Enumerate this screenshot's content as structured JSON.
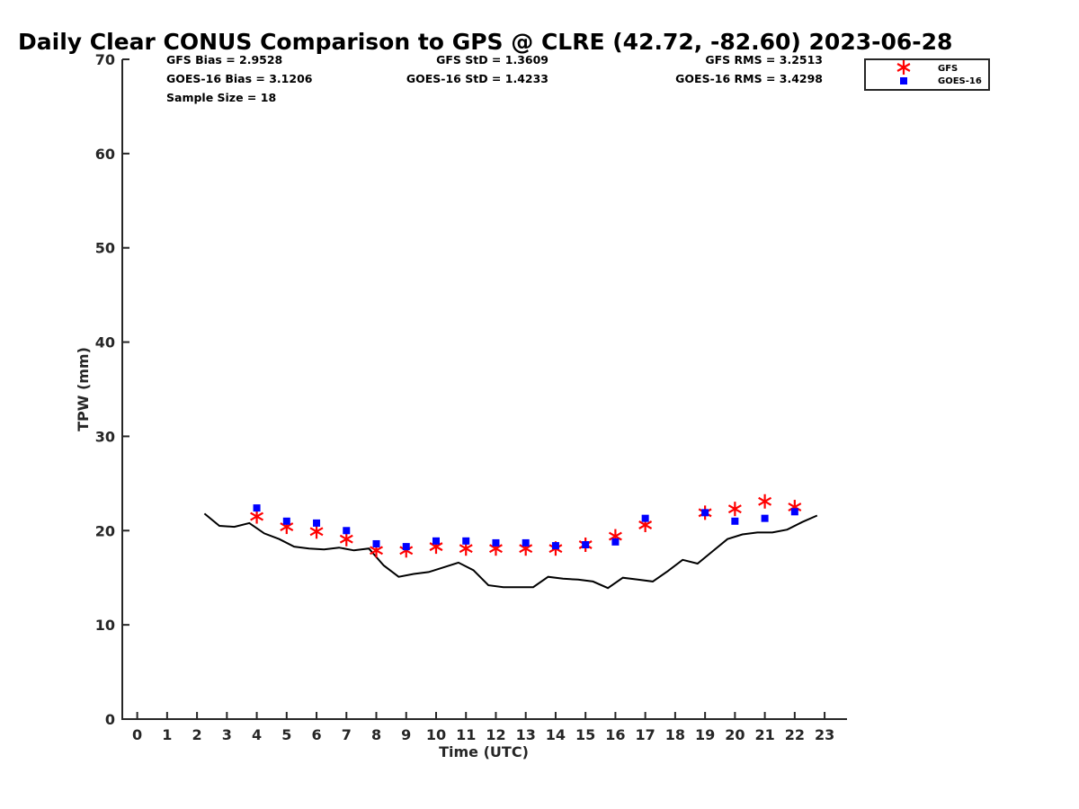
{
  "chart_data": {
    "type": "line",
    "title": "Daily Clear CONUS Comparison to GPS @ CLRE (42.72, -82.60) 2023-06-28",
    "xlabel": "Time (UTC)",
    "ylabel": "TPW (mm)",
    "xlim": [
      -0.5,
      23.75
    ],
    "ylim": [
      0,
      70
    ],
    "xticks": [
      0,
      1,
      2,
      3,
      4,
      5,
      6,
      7,
      8,
      9,
      10,
      11,
      12,
      13,
      14,
      15,
      16,
      17,
      18,
      19,
      20,
      21,
      22,
      23
    ],
    "yticks": [
      0,
      10,
      20,
      30,
      40,
      50,
      60,
      70
    ],
    "stats": [
      [
        "GFS Bias = 2.9528",
        "GFS StD = 1.3609",
        "GFS RMS = 3.2513"
      ],
      [
        "GOES-16 Bias = 3.1206",
        "GOES-16 StD = 1.4233",
        "GOES-16 RMS = 3.4298"
      ],
      [
        "Sample Size = 18",
        "",
        ""
      ]
    ],
    "legend": {
      "position": "top-right",
      "entries": [
        "GFS",
        "GOES-16"
      ]
    },
    "series": [
      {
        "kind": "line",
        "color": "#000000",
        "x": [
          2.25,
          2.75,
          3.25,
          3.75,
          4.25,
          4.75,
          5.25,
          5.75,
          6.25,
          6.75,
          7.25,
          7.75,
          8.25,
          8.75,
          9.25,
          9.75,
          10.25,
          10.75,
          11.25,
          11.75,
          12.25,
          12.75,
          13.25,
          13.75,
          14.25,
          14.75,
          15.25,
          15.75,
          16.25,
          16.75,
          17.25,
          17.75,
          18.25,
          18.75,
          19.25,
          19.75,
          20.25,
          20.75,
          21.25,
          21.75,
          22.25,
          22.75
        ],
        "y": [
          21.8,
          20.5,
          20.4,
          20.8,
          19.7,
          19.1,
          18.3,
          18.1,
          18.0,
          18.2,
          17.9,
          18.1,
          16.3,
          15.1,
          15.4,
          15.6,
          16.1,
          16.6,
          15.8,
          14.2,
          14.0,
          14.0,
          14.0,
          15.1,
          14.9,
          14.8,
          14.6,
          13.9,
          15.0,
          14.8,
          14.6,
          15.7,
          16.9,
          16.5,
          17.8,
          19.1,
          19.6,
          19.8,
          19.8,
          20.1,
          20.9,
          21.6
        ]
      },
      {
        "name": "GFS",
        "kind": "asterisk",
        "color": "#ff0000",
        "x": [
          4,
          5,
          6,
          7,
          8,
          9,
          10,
          11,
          12,
          13,
          14,
          15,
          16,
          17,
          19,
          20,
          21,
          22
        ],
        "y": [
          21.5,
          20.4,
          19.9,
          19.1,
          17.9,
          17.9,
          18.3,
          18.1,
          18.1,
          18.1,
          18.1,
          18.5,
          19.4,
          20.6,
          21.9,
          22.3,
          23.1,
          22.5
        ]
      },
      {
        "name": "GOES-16",
        "kind": "square",
        "color": "#0000ff",
        "x": [
          4,
          5,
          6,
          7,
          8,
          9,
          10,
          11,
          12,
          13,
          14,
          15,
          16,
          17,
          19,
          20,
          21,
          22
        ],
        "y": [
          22.4,
          21.0,
          20.8,
          20.0,
          18.6,
          18.3,
          18.9,
          18.9,
          18.7,
          18.7,
          18.4,
          18.5,
          18.8,
          21.3,
          21.9,
          21.0,
          21.3,
          22.0
        ]
      }
    ]
  }
}
